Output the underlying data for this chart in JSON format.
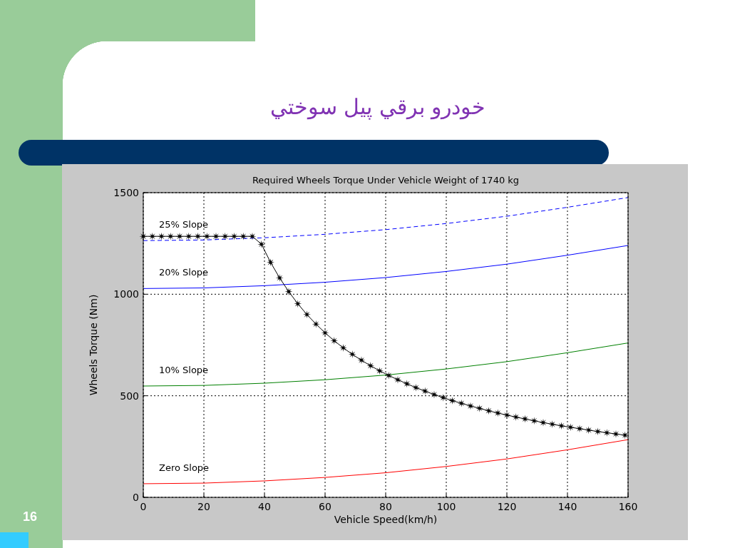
{
  "chart_data": {
    "type": "line",
    "title": "خودرو برقي پيل سوختي",
    "subtitle": "Required Wheels Torque Under Vehicle Weight of 1740 kg",
    "xlabel": "Vehicle Speed(km/h)",
    "ylabel": "Wheels Torque (Nm)",
    "xlim": [
      0,
      160
    ],
    "ylim": [
      0,
      1500
    ],
    "xticks": [
      0,
      20,
      40,
      60,
      80,
      100,
      120,
      140,
      160
    ],
    "yticks": [
      0,
      500,
      1000,
      1500
    ],
    "grid": true,
    "annotations": [
      "16"
    ],
    "series": [
      {
        "name": "25% Slope",
        "color": "#0000ff",
        "line_style": "dashed",
        "marker": "none",
        "x": [
          0,
          20,
          40,
          60,
          80,
          100,
          120,
          140,
          160
        ],
        "values": [
          1264,
          1267,
          1278,
          1295,
          1318,
          1348,
          1384,
          1428,
          1476
        ]
      },
      {
        "name": "20% Slope",
        "color": "#0000ff",
        "line_style": "solid",
        "marker": "none",
        "x": [
          0,
          20,
          40,
          60,
          80,
          100,
          120,
          140,
          160
        ],
        "values": [
          1028,
          1031,
          1042,
          1059,
          1082,
          1112,
          1148,
          1192,
          1240
        ]
      },
      {
        "name": "10% Slope",
        "color": "#008000",
        "line_style": "solid",
        "marker": "none",
        "x": [
          0,
          20,
          40,
          60,
          80,
          100,
          120,
          140,
          160
        ],
        "values": [
          548,
          551,
          562,
          579,
          602,
          632,
          668,
          712,
          760
        ]
      },
      {
        "name": "Zero Slope",
        "color": "#ff0000",
        "line_style": "solid",
        "marker": "none",
        "x": [
          0,
          20,
          40,
          60,
          80,
          100,
          120,
          140,
          160
        ],
        "values": [
          67,
          70,
          81,
          98,
          121,
          152,
          189,
          234,
          284
        ]
      },
      {
        "color": "#000000",
        "line_style": "solid",
        "marker": "star",
        "x": [
          0,
          3,
          6,
          9,
          12,
          15,
          18,
          21,
          24,
          27,
          30,
          33,
          36,
          39,
          42,
          45,
          48,
          51,
          54,
          57,
          60,
          63,
          66,
          69,
          72,
          75,
          78,
          81,
          84,
          87,
          90,
          93,
          96,
          99,
          102,
          105,
          108,
          111,
          114,
          117,
          120,
          123,
          126,
          129,
          132,
          135,
          138,
          141,
          144,
          147,
          150,
          153,
          156,
          159
        ],
        "values": [
          1285,
          1285,
          1285,
          1285,
          1285,
          1285,
          1285,
          1285,
          1285,
          1285,
          1285,
          1285,
          1285,
          1246,
          1157,
          1080,
          1013,
          953,
          900,
          853,
          810,
          771,
          736,
          704,
          675,
          648,
          623,
          600,
          579,
          559,
          540,
          523,
          506,
          491,
          476,
          463,
          450,
          438,
          426,
          415,
          405,
          395,
          386,
          377,
          368,
          360,
          352,
          345,
          338,
          331,
          324,
          318,
          312,
          306
        ]
      }
    ]
  }
}
